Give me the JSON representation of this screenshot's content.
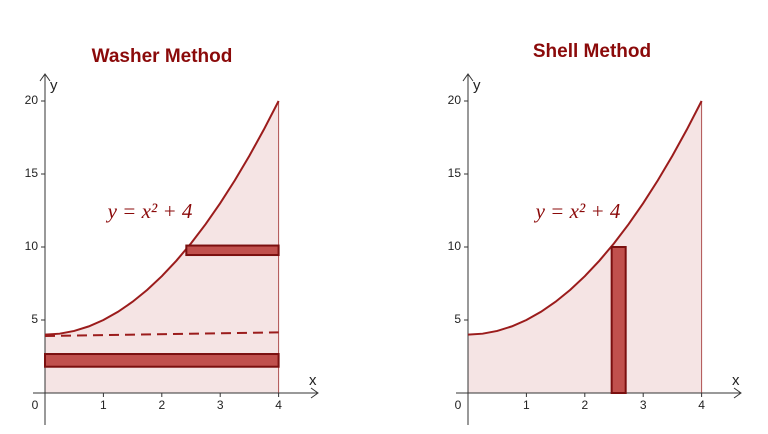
{
  "panels": [
    {
      "title": "Washer Method",
      "xlabel": "x",
      "ylabel": "y",
      "equation": "y = x² + 4",
      "xticks": [
        0,
        1,
        2,
        3,
        4
      ],
      "yticks": [
        5,
        10,
        15,
        20
      ],
      "curve": {
        "x": [
          0,
          0.25,
          0.5,
          0.75,
          1,
          1.25,
          1.5,
          1.75,
          2,
          2.25,
          2.5,
          2.75,
          3,
          3.25,
          3.5,
          3.75,
          4
        ],
        "y": [
          4,
          4.0625,
          4.25,
          4.5625,
          5,
          5.5625,
          6.25,
          7.0625,
          8,
          9.0625,
          10.25,
          11.5625,
          13,
          14.5625,
          16.25,
          18.0625,
          20
        ]
      },
      "dashed": {
        "x": [
          0,
          4
        ],
        "y": [
          3.9,
          4.15
        ]
      },
      "strips": [
        {
          "x": [
            2.42,
            4
          ],
          "y": [
            9.45,
            10.1
          ]
        },
        {
          "x": [
            0,
            4
          ],
          "y": [
            1.8,
            2.67
          ]
        }
      ]
    },
    {
      "title": "Shell Method",
      "xlabel": "x",
      "ylabel": "y",
      "equation": "y = x² + 4",
      "xticks": [
        0,
        1,
        2,
        3,
        4
      ],
      "yticks": [
        5,
        10,
        15,
        20
      ],
      "curve": {
        "x": [
          0,
          0.25,
          0.5,
          0.75,
          1,
          1.25,
          1.5,
          1.75,
          2,
          2.25,
          2.5,
          2.75,
          3,
          3.25,
          3.5,
          3.75,
          4
        ],
        "y": [
          4,
          4.0625,
          4.25,
          4.5625,
          5,
          5.5625,
          6.25,
          7.0625,
          8,
          9.0625,
          10.25,
          11.5625,
          13,
          14.5625,
          16.25,
          18.0625,
          20
        ]
      },
      "strips": [
        {
          "x": [
            2.46,
            2.7
          ],
          "y": [
            0,
            10
          ]
        }
      ]
    }
  ]
}
